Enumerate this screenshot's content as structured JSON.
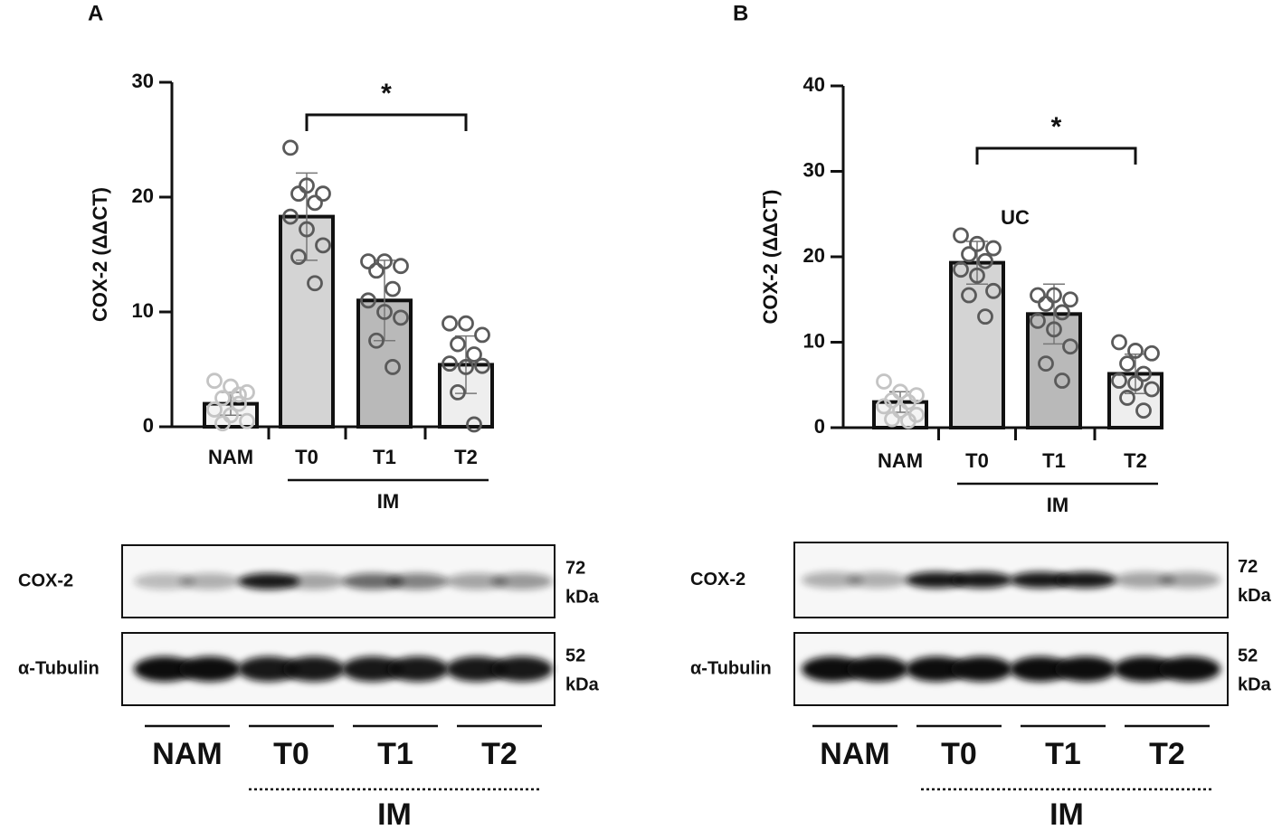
{
  "chart_data": [
    {
      "type": "bar",
      "panel_label": "A",
      "ylabel": "COX-2 (ΔΔCT)",
      "categories": [
        "NAM",
        "T0",
        "T1",
        "T2"
      ],
      "group_label": "IM",
      "values": [
        2,
        18.3,
        11,
        5.4
      ],
      "errors": [
        1,
        3.8,
        3.5,
        2.5
      ],
      "points": [
        [
          4,
          3.5,
          3,
          2.5,
          2,
          1.5,
          1,
          0.5,
          0.3,
          2.8
        ],
        [
          24.3,
          21,
          20.3,
          20.3,
          19.5,
          18.3,
          17.2,
          15.8,
          14.8,
          12.5
        ],
        [
          14.4,
          14.4,
          14,
          13.6,
          12,
          11,
          10,
          9.5,
          7.5,
          5.2
        ],
        [
          9,
          9,
          8,
          7.2,
          6.3,
          5.5,
          5.2,
          5.3,
          3,
          0.2
        ]
      ],
      "colors": [
        "#f4f4f4",
        "#d4d4d4",
        "#b9b9b9",
        "#eeeeee"
      ],
      "point_colors": [
        "#c4c4c4",
        "#5a5a5a",
        "#5a5a5a",
        "#5a5a5a"
      ],
      "ylim": [
        0,
        30
      ],
      "yticks": [
        0,
        10,
        20,
        30
      ],
      "significance": {
        "between": [
          "T0",
          "T2"
        ],
        "label": "*"
      },
      "blot": {
        "rows": [
          {
            "label": "COX-2",
            "mw": "72",
            "unit": "kDa"
          },
          {
            "label": "α-Tubulin",
            "mw": "52",
            "unit": "kDa"
          }
        ]
      }
    },
    {
      "type": "bar",
      "panel_label": "B",
      "ylabel": "COX-2 (ΔΔCT)",
      "categories": [
        "NAM",
        "T0",
        "T1",
        "T2"
      ],
      "group_label": "IM",
      "annotation": "UC",
      "values": [
        3,
        19.3,
        13.3,
        6.3
      ],
      "errors": [
        1.2,
        2.5,
        3.5,
        2.3
      ],
      "points": [
        [
          5.4,
          4.2,
          3.8,
          3.2,
          3,
          2.5,
          2,
          1.5,
          1,
          0.8
        ],
        [
          22.5,
          21.5,
          21,
          20.3,
          19.5,
          18.5,
          17.8,
          16,
          15.5,
          13
        ],
        [
          15.5,
          15.5,
          15,
          14.5,
          13.5,
          12.5,
          11.5,
          9.5,
          7.5,
          5.5
        ],
        [
          10,
          9,
          8.7,
          7.5,
          6.3,
          5.5,
          5.2,
          4.5,
          3.5,
          2
        ]
      ],
      "colors": [
        "#f4f4f4",
        "#d4d4d4",
        "#b9b9b9",
        "#eeeeee"
      ],
      "point_colors": [
        "#c4c4c4",
        "#5a5a5a",
        "#5a5a5a",
        "#5a5a5a"
      ],
      "ylim": [
        0,
        40
      ],
      "yticks": [
        0,
        10,
        20,
        30,
        40
      ],
      "significance": {
        "between": [
          "T0",
          "T2"
        ],
        "label": "*"
      },
      "blot": {
        "rows": [
          {
            "label": "COX-2",
            "mw": "72",
            "unit": "kDa"
          },
          {
            "label": "α-Tubulin",
            "mw": "52",
            "unit": "kDa"
          }
        ]
      }
    }
  ]
}
